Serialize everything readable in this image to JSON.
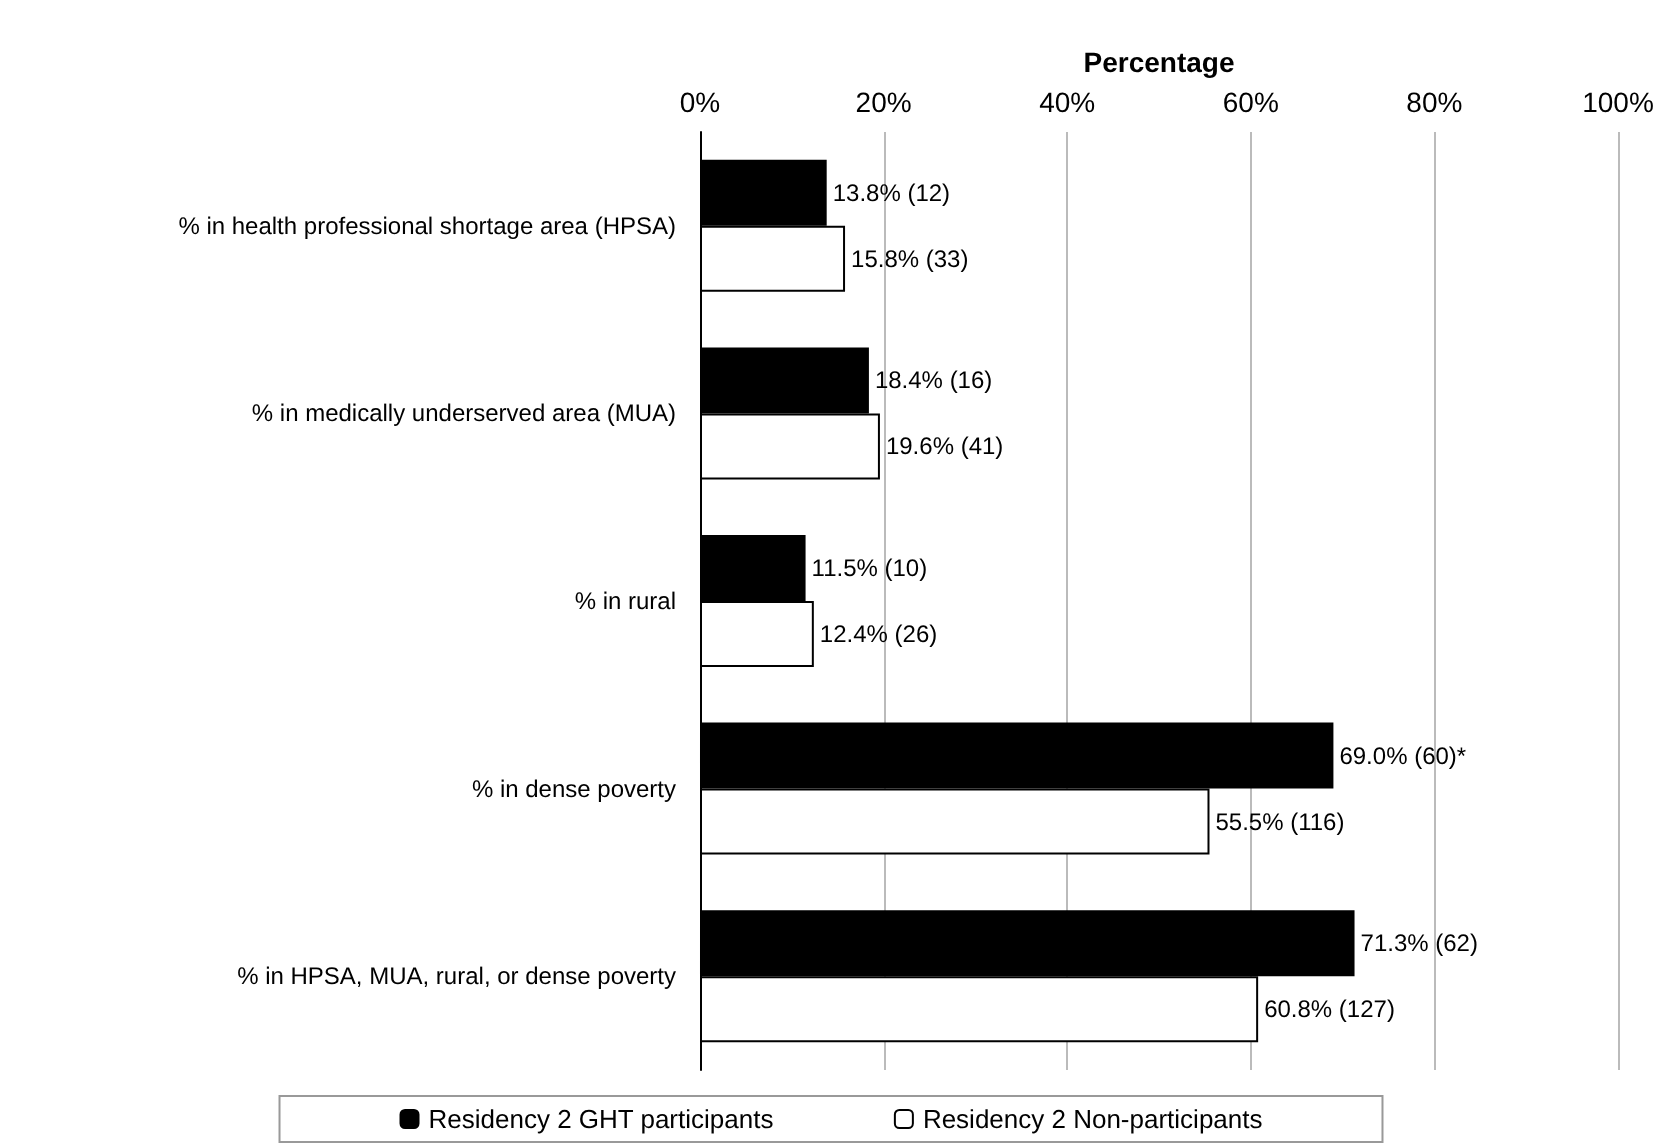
{
  "chart_data": {
    "type": "bar",
    "orientation": "horizontal",
    "xlabel": "Percentage",
    "categories": [
      "% in health professional shortage area (HPSA)",
      "% in medically underserved area (MUA)",
      "% in rural",
      "% in dense poverty",
      "% in HPSA, MUA, rural, or dense poverty"
    ],
    "series": [
      {
        "name": "Residency 2 GHT participants",
        "color": "#000000",
        "values": [
          13.8,
          18.4,
          11.5,
          69.0,
          71.3
        ],
        "value_labels": [
          "13.8% (12)",
          "18.4% (16)",
          "11.5% (10)",
          "69.0% (60)*",
          "71.3% (62)"
        ]
      },
      {
        "name": "Residency 2 Non-participants",
        "color": "#ffffff",
        "values": [
          15.8,
          19.6,
          12.4,
          55.5,
          60.8
        ],
        "value_labels": [
          "15.8% (33)",
          "19.6% (41)",
          "12.4% (26)",
          "55.5% (116)",
          "60.8% (127)"
        ]
      }
    ],
    "xlim": [
      0,
      100
    ],
    "xticks": [
      {
        "value": 0,
        "label": "0%"
      },
      {
        "value": 20,
        "label": "20%"
      },
      {
        "value": 40,
        "label": "40%"
      },
      {
        "value": 60,
        "label": "60%"
      },
      {
        "value": 80,
        "label": "80%"
      },
      {
        "value": 100,
        "label": "100%"
      }
    ],
    "grid": "x",
    "legend": "bottom"
  }
}
